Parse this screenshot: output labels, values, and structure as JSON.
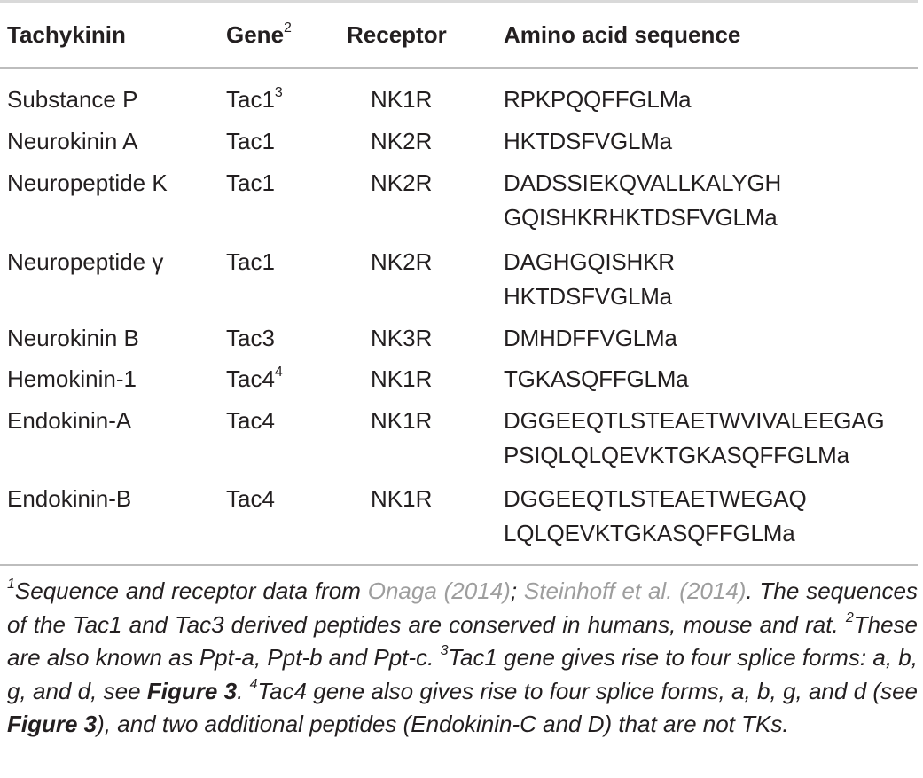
{
  "headers": {
    "tachykinin": "Tachykinin",
    "gene": "Gene",
    "gene_sup": "2",
    "receptor": "Receptor",
    "sequence": "Amino acid sequence"
  },
  "rows": [
    {
      "name": "Substance P",
      "gene": "Tac1",
      "gene_sup": "3",
      "receptor": "NK1R",
      "seq": [
        "RPKPQQFFGLMa"
      ]
    },
    {
      "name": "Neurokinin A",
      "gene": "Tac1",
      "gene_sup": "",
      "receptor": "NK2R",
      "seq": [
        "HKTDSFVGLMa"
      ]
    },
    {
      "name": "Neuropeptide K",
      "gene": "Tac1",
      "gene_sup": "",
      "receptor": "NK2R",
      "seq": [
        "DADSSIEKQVALLKALYGH",
        "GQISHKRHKTDSFVGLMa"
      ]
    },
    {
      "name": "Neuropeptide γ",
      "gene": "Tac1",
      "gene_sup": "",
      "receptor": "NK2R",
      "seq": [
        "DAGHGQISHKR",
        "HKTDSFVGLMa"
      ]
    },
    {
      "name": "Neurokinin B",
      "gene": "Tac3",
      "gene_sup": "",
      "receptor": "NK3R",
      "seq": [
        "DMHDFFVGLMa"
      ]
    },
    {
      "name": "Hemokinin-1",
      "gene": "Tac4",
      "gene_sup": "4",
      "receptor": "NK1R",
      "seq": [
        "TGKASQFFGLMa"
      ]
    },
    {
      "name": "Endokinin-A",
      "gene": "Tac4",
      "gene_sup": "",
      "receptor": "NK1R",
      "seq": [
        "DGGEEQTLSTEAETWVIVALEEGAG",
        "PSIQLQLQEVKTGKASQFFGLMa"
      ]
    },
    {
      "name": "Endokinin-B",
      "gene": "Tac4",
      "gene_sup": "",
      "receptor": "NK1R",
      "seq": [
        "DGGEEQTLSTEAETWEGAQ",
        "LQLQEVKTGKASQFFGLMa"
      ]
    }
  ],
  "footnote": {
    "n1_mark": "1",
    "n1_text": "Sequence and receptor data from ",
    "ref1": "Onaga (2014)",
    "sep": "; ",
    "ref2": "Steinhoff et al. (2014)",
    "n1_text2": ". The sequences of the Tac1 and Tac3 derived peptides are conserved in humans, mouse and rat. ",
    "n2_mark": "2",
    "n2_text": "These are also known as Ppt-a, Ppt-b and Ppt-c. ",
    "n3_mark": "3",
    "n3_text": "Tac1 gene gives rise to four splice forms: a, b, g, and d, see ",
    "fig_ref1": "Figure 3",
    "n3_end": ". ",
    "n4_mark": "4",
    "n4_text": "Tac4 gene also gives rise to four splice forms, a, b, g, and d (see ",
    "fig_ref2": "Figure 3",
    "n4_text2": "), and two additional peptides (Endokinin-C and D) that are not TKs."
  },
  "colors": {
    "text": "#231f20",
    "link": "#9e9e9e",
    "rule": "#bdbdbd"
  }
}
